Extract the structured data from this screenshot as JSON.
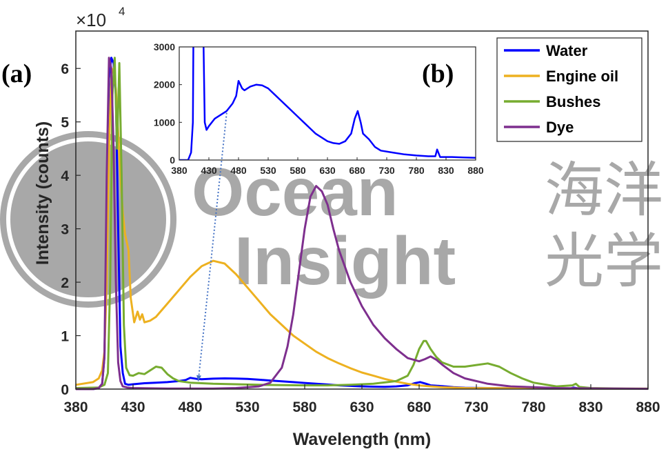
{
  "chart_data": {
    "type": "line",
    "scale_exponent_label": {
      "base": "×10",
      "exp": "4"
    },
    "xlabel": "Wavelength (nm)",
    "ylabel": "Intensity (counts)",
    "xlim": [
      380,
      880
    ],
    "ylim": [
      0,
      67000
    ],
    "xticks": [
      380,
      430,
      480,
      530,
      580,
      630,
      680,
      730,
      780,
      830,
      880
    ],
    "xtick_labels": [
      "380",
      "430",
      "480",
      "530",
      "580",
      "630",
      "680",
      "730",
      "780",
      "830",
      "880"
    ],
    "yticks": [
      0,
      10000,
      20000,
      30000,
      40000,
      50000,
      60000
    ],
    "ytick_labels": [
      "0",
      "1",
      "2",
      "3",
      "4",
      "5",
      "6"
    ],
    "panel_labels": [
      "(a)",
      "(b)"
    ],
    "legend_position": "top-right",
    "series": [
      {
        "name": "Water",
        "color": "#0000ff",
        "x": [
          380,
          395,
          400,
          403,
          405,
          407,
          409,
          411,
          413,
          415,
          417,
          419,
          421,
          423,
          426,
          430,
          440,
          450,
          460,
          470,
          476,
          480,
          486,
          490,
          500,
          510,
          520,
          530,
          540,
          550,
          560,
          570,
          580,
          590,
          600,
          610,
          620,
          630,
          640,
          650,
          660,
          670,
          676,
          681,
          686,
          690,
          700,
          710,
          720,
          740,
          760,
          780,
          800,
          812,
          815,
          820,
          840,
          860,
          880
        ],
        "y": [
          0,
          0,
          200,
          1000,
          6000,
          30000,
          58000,
          62000,
          61000,
          55000,
          30000,
          8000,
          3000,
          1000,
          800,
          900,
          1100,
          1200,
          1300,
          1500,
          1700,
          2100,
          1900,
          1850,
          1950,
          2000,
          1980,
          1900,
          1750,
          1600,
          1450,
          1300,
          1150,
          1000,
          850,
          700,
          600,
          500,
          450,
          430,
          500,
          700,
          1100,
          1300,
          1000,
          700,
          550,
          350,
          250,
          200,
          150,
          120,
          100,
          100,
          280,
          80,
          80,
          70,
          60
        ]
      },
      {
        "name": "Engine oil",
        "color": "#edb120",
        "x": [
          380,
          395,
          400,
          403,
          405,
          407,
          409,
          411,
          413,
          415,
          417,
          419,
          421,
          423,
          426,
          428,
          431,
          434,
          436,
          438,
          440,
          445,
          450,
          460,
          470,
          480,
          490,
          500,
          510,
          520,
          530,
          540,
          550,
          560,
          570,
          580,
          590,
          600,
          610,
          620,
          630,
          640,
          650,
          660,
          670,
          680,
          690,
          700,
          720,
          760,
          800,
          880
        ],
        "y": [
          800,
          1300,
          2000,
          3500,
          7000,
          20000,
          45000,
          59000,
          60000,
          56000,
          48000,
          40000,
          33000,
          29000,
          26000,
          17000,
          12500,
          14500,
          13000,
          14000,
          12500,
          12800,
          13500,
          16000,
          18500,
          21000,
          23000,
          24000,
          23500,
          21500,
          19000,
          16500,
          14000,
          12000,
          10000,
          8500,
          7000,
          5800,
          4800,
          3900,
          3100,
          2500,
          1900,
          1400,
          1000,
          700,
          500,
          350,
          200,
          150,
          100,
          80
        ]
      },
      {
        "name": "Bushes",
        "color": "#77ac30",
        "x": [
          380,
          400,
          405,
          408,
          410,
          412,
          414,
          416,
          418,
          420,
          422,
          424,
          427,
          430,
          435,
          440,
          445,
          450,
          455,
          460,
          465,
          470,
          480,
          500,
          540,
          580,
          600,
          620,
          640,
          660,
          670,
          675,
          680,
          684,
          686,
          690,
          695,
          700,
          710,
          720,
          730,
          740,
          750,
          760,
          770,
          780,
          800,
          814,
          817,
          820,
          830,
          840,
          860,
          880
        ],
        "y": [
          200,
          300,
          800,
          3000,
          20000,
          55000,
          62000,
          45000,
          61000,
          40000,
          12000,
          4000,
          2600,
          2500,
          3000,
          2800,
          3500,
          4200,
          4000,
          2800,
          2000,
          1500,
          1200,
          1000,
          800,
          700,
          700,
          800,
          1000,
          1500,
          2500,
          4500,
          7500,
          9000,
          9000,
          7500,
          6000,
          5000,
          4200,
          4200,
          4500,
          4800,
          4200,
          3000,
          2000,
          1200,
          500,
          700,
          1000,
          400,
          200,
          150,
          100,
          80
        ]
      },
      {
        "name": "Dye",
        "color": "#7e2f8e",
        "x": [
          380,
          395,
          400,
          403,
          405,
          407,
          409,
          411,
          413,
          415,
          417,
          419,
          421,
          425,
          430,
          440,
          460,
          480,
          500,
          520,
          540,
          550,
          560,
          565,
          570,
          575,
          580,
          585,
          590,
          595,
          600,
          605,
          610,
          620,
          630,
          640,
          650,
          660,
          670,
          680,
          685,
          690,
          695,
          700,
          710,
          720,
          740,
          760,
          800,
          840,
          880
        ],
        "y": [
          0,
          0,
          200,
          1000,
          6000,
          40000,
          62000,
          60000,
          45000,
          20000,
          5000,
          1500,
          500,
          300,
          200,
          150,
          100,
          100,
          100,
          200,
          500,
          1200,
          4000,
          8000,
          14000,
          22000,
          30000,
          36000,
          38000,
          37000,
          34500,
          30000,
          26000,
          20000,
          15500,
          12000,
          9500,
          7500,
          5800,
          5200,
          5600,
          6100,
          5500,
          4600,
          3000,
          2000,
          1000,
          500,
          200,
          100,
          50
        ]
      }
    ],
    "inset": {
      "panel_label": "(b)",
      "series_name": "Water",
      "xlim": [
        380,
        880
      ],
      "ylim": [
        0,
        3000
      ],
      "xticks": [
        380,
        430,
        480,
        530,
        580,
        630,
        680,
        730,
        780,
        830,
        880
      ],
      "xtick_labels": [
        "380",
        "430",
        "480",
        "530",
        "580",
        "630",
        "680",
        "730",
        "780",
        "830",
        "880"
      ],
      "yticks": [
        0,
        1000,
        2000,
        3000
      ],
      "ytick_labels": [
        "0",
        "1000",
        "2000",
        "3000"
      ]
    },
    "annotation": {
      "type": "dotted-arrow",
      "color": "#4472c4",
      "from": [
        460,
        1250
      ],
      "to": [
        487,
        1500
      ]
    }
  },
  "watermark": {
    "line1": "Ocean",
    "line2": "Insight",
    "cjk1": "海洋",
    "cjk2": "光学"
  }
}
